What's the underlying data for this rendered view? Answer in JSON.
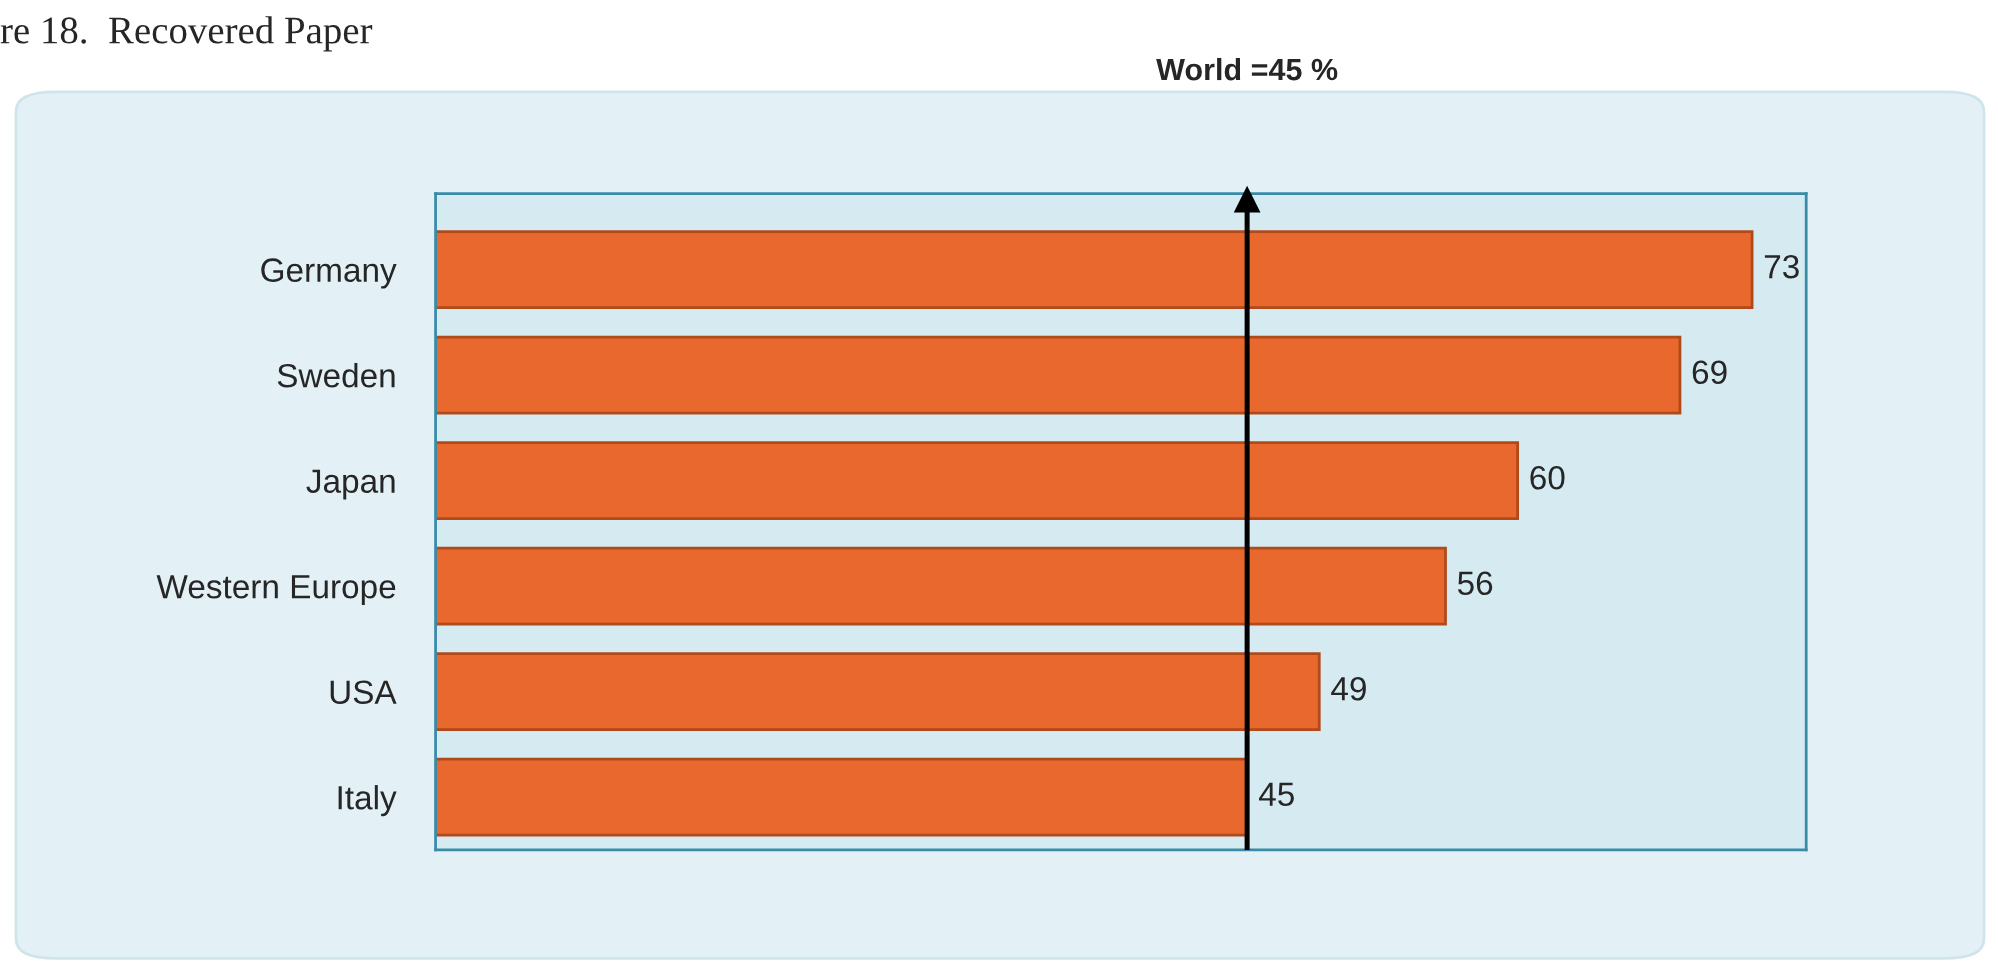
{
  "chart_data": {
    "type": "bar",
    "orientation": "horizontal",
    "title": "re 18.  Recovered Paper",
    "categories": [
      "Germany",
      "Sweden",
      "Japan",
      "Western Europe",
      "USA",
      "Italy"
    ],
    "values": [
      73,
      69,
      60,
      56,
      49,
      45
    ],
    "color": "#e8682e",
    "data_labels": true,
    "xlim": [
      0,
      76
    ],
    "tick_labels": "y",
    "grid": false,
    "legend": false,
    "ref_lines": [
      {
        "axis": "x",
        "value": 45,
        "label": "World =45 %",
        "color": "#000000"
      }
    ]
  }
}
